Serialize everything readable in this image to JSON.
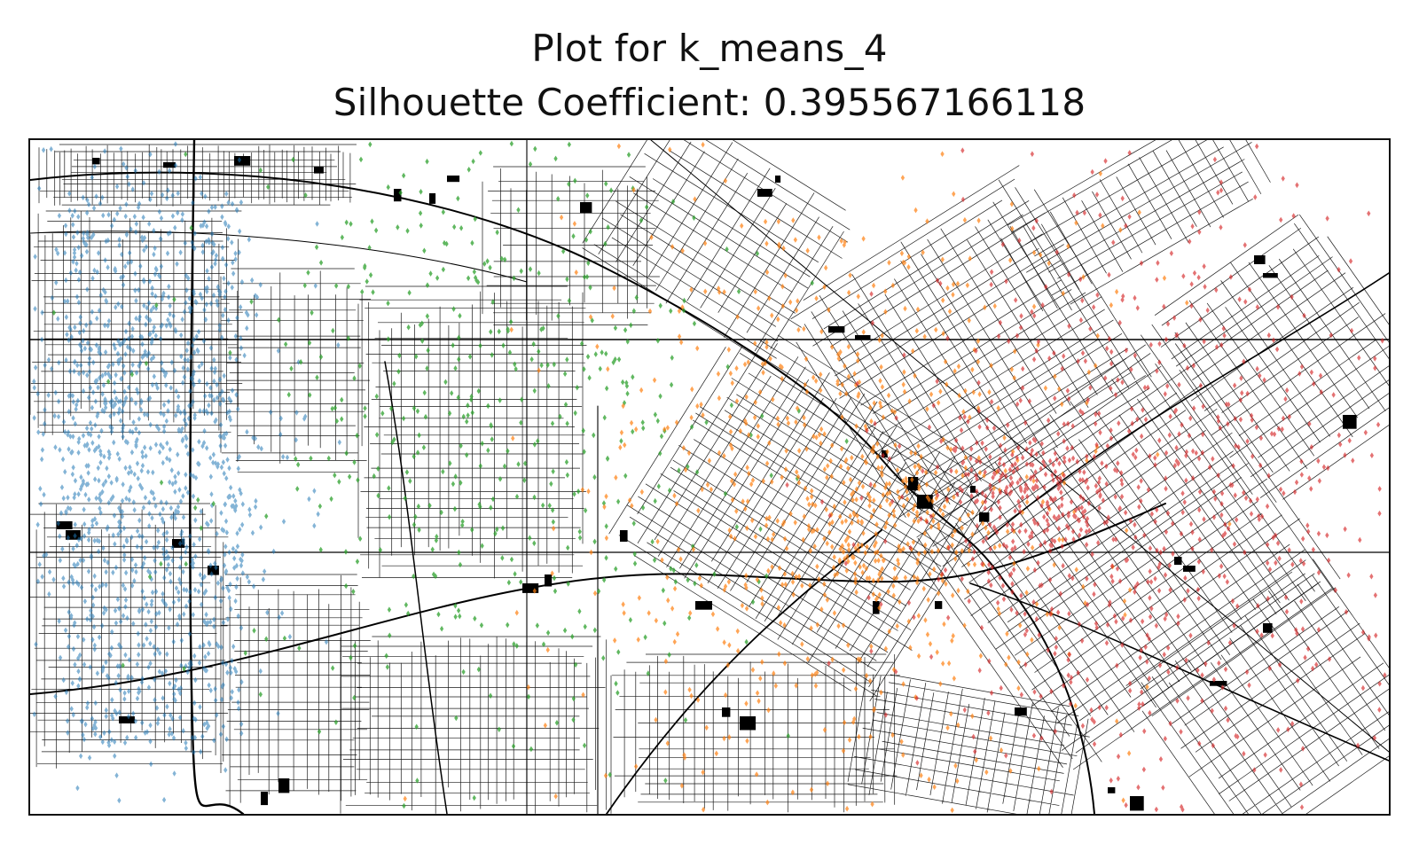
{
  "title": "Plot for k_means_4",
  "subtitle": "Silhouette Coefficient: 0.395567166118",
  "map": {
    "basemap": "street network",
    "axes_ticks_visible": false,
    "marker": "diamond",
    "road_color": "#000000",
    "frame_color": "#111111"
  },
  "chart_data": {
    "type": "scatter",
    "title": "Plot for k_means_4",
    "subtitle": "Silhouette Coefficient: 0.395567166118",
    "clusters": [
      {
        "id": 0,
        "color": "#1f77b4",
        "location": "west",
        "size": "large"
      },
      {
        "id": 1,
        "color": "#2ca02c",
        "location": "center-west",
        "size": "medium"
      },
      {
        "id": 2,
        "color": "#ff7f0e",
        "location": "center-east",
        "size": "large"
      },
      {
        "id": 3,
        "color": "#d62728",
        "location": "east",
        "size": "large"
      }
    ]
  }
}
